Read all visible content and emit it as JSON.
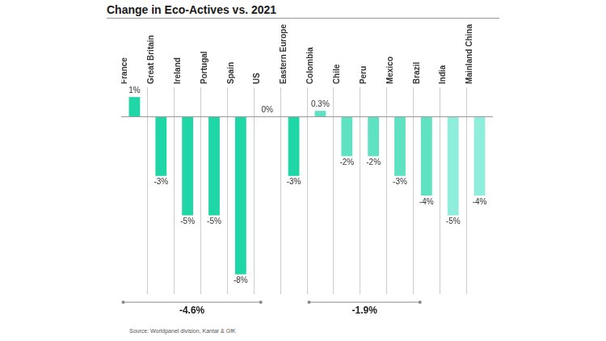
{
  "chart_data": {
    "type": "bar",
    "title": "Change in Eco-Actives vs. 2021",
    "categories": [
      "France",
      "Great Britain",
      "Ireland",
      "Portugal",
      "Spain",
      "US",
      "Eastern Europe",
      "Colombia",
      "Chile",
      "Peru",
      "Mexico",
      "Brazil",
      "India",
      "Mainland China"
    ],
    "values": [
      1,
      -3,
      -5,
      -5,
      -8,
      0,
      -3,
      0.3,
      -2,
      -2,
      -3,
      -4,
      -5,
      -4
    ],
    "value_labels": [
      "1%",
      "-3%",
      "-5%",
      "-5%",
      "-8%",
      "0%",
      "-3%",
      "0.3%",
      "-2%",
      "-2%",
      "-3%",
      "-4%",
      "-5%",
      "-4%"
    ],
    "colors": [
      "#1fd6a6",
      "#1fd6a6",
      "#1fd6a6",
      "#1fd6a6",
      "#1fd6a6",
      "#1fd6a6",
      "#1fd6a6",
      "#5fe2c2",
      "#5fe2c2",
      "#5fe2c2",
      "#5fe2c2",
      "#5fe2c2",
      "#8eeedb",
      "#8eeedb"
    ],
    "ylim": [
      -9,
      1.5
    ],
    "yticks": [
      0
    ],
    "grid": true,
    "data_labels": true,
    "tick_labels": "x",
    "annotations": [
      {
        "text": "-4.6%",
        "from": "France",
        "to": "US"
      },
      {
        "text": "-1.9%",
        "from": "Colombia",
        "to": "Brazil"
      }
    ],
    "source": "Source: Worldpanel division, Kantar & GfK"
  }
}
